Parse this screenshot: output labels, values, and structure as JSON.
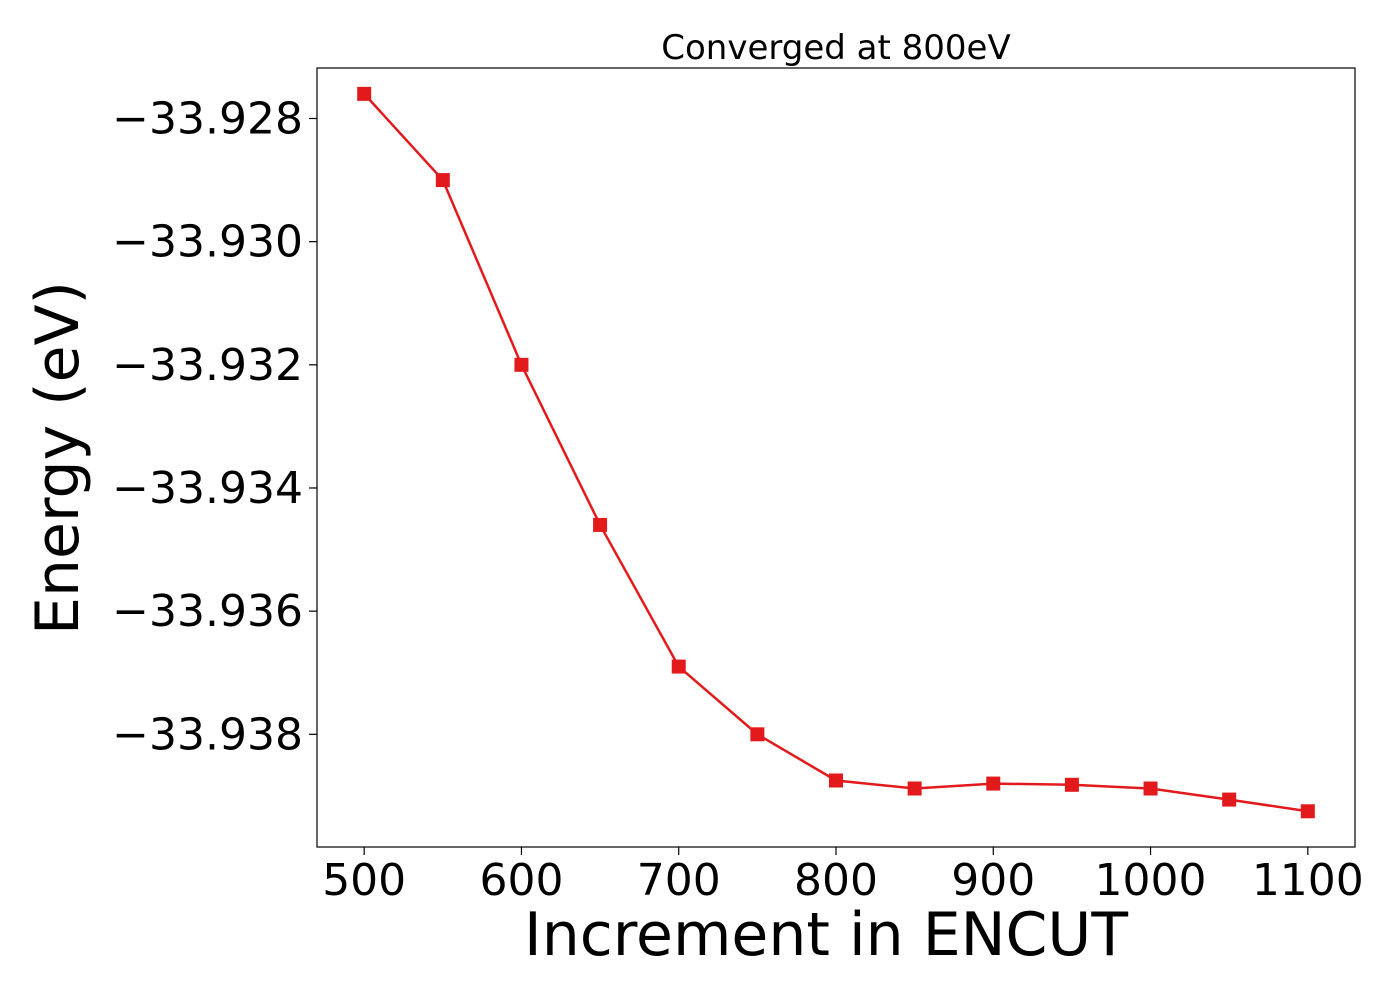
{
  "chart_data": {
    "type": "line",
    "title": "Converged at 800eV",
    "xlabel": "Increment in ENCUT",
    "ylabel": "Energy (eV)",
    "x": [
      500,
      550,
      600,
      650,
      700,
      750,
      800,
      850,
      900,
      950,
      1000,
      1050,
      1100
    ],
    "series": [
      {
        "values": [
          -33.9276,
          -33.929,
          -33.932,
          -33.9346,
          -33.9369,
          -33.938,
          -33.93875,
          -33.93888,
          -33.9388,
          -33.93882,
          -33.93888,
          -33.93906,
          -33.93925
        ],
        "color": "#e31a1c",
        "marker": "square"
      }
    ],
    "xlim": [
      470,
      1130
    ],
    "ylim": [
      -33.93983,
      -33.92718
    ],
    "xticks": [
      500,
      600,
      700,
      800,
      900,
      1000,
      1100
    ],
    "yticks": [
      -33.928,
      -33.93,
      -33.932,
      -33.934,
      -33.936,
      -33.938
    ],
    "ytick_labels": [
      "−33.928",
      "−33.930",
      "−33.932",
      "−33.934",
      "−33.936",
      "−33.938"
    ],
    "grid": false,
    "legend": "none"
  }
}
